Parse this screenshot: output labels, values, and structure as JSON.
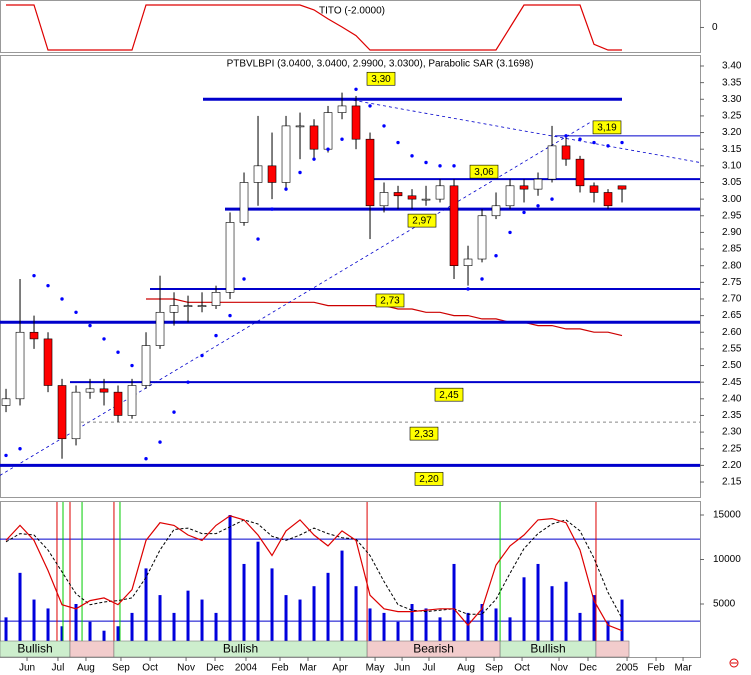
{
  "chart_data": [
    {
      "type": "line",
      "title": "TITO (-2.0000)",
      "color": "#dd0000",
      "values": [
        2,
        2,
        2,
        -2,
        -2,
        -2,
        -2,
        -2,
        -2,
        -2,
        2,
        2,
        2,
        2,
        2,
        2,
        2,
        2,
        2,
        2,
        2,
        2,
        1.56,
        0.76,
        0.04,
        -0.72,
        -2,
        -2,
        -2,
        -2,
        -2,
        -2,
        -2,
        -2,
        -2,
        -2,
        0,
        2,
        2,
        2,
        2,
        2,
        -1.5,
        -2,
        -2
      ],
      "ylim": [
        -2.18,
        2.44
      ],
      "yticks": [
        0
      ]
    },
    {
      "type": "candlestick",
      "title": "PTBVLBPI (3.0400, 3.0400, 2.9900, 3.0300), Parabolic SAR (3.1698)",
      "up_color": "#ffffff",
      "down_color": "#ff0000",
      "sar_color": "#0000ff",
      "ma_color": "#cc0000",
      "level_color": "#0000cc",
      "trend_color": "#0000cc",
      "ohlc": [
        [
          2.38,
          2.43,
          2.36,
          2.4
        ],
        [
          2.4,
          2.76,
          2.38,
          2.6
        ],
        [
          2.6,
          2.65,
          2.55,
          2.58
        ],
        [
          2.58,
          2.6,
          2.42,
          2.44
        ],
        [
          2.44,
          2.46,
          2.22,
          2.28
        ],
        [
          2.28,
          2.44,
          2.26,
          2.42
        ],
        [
          2.42,
          2.46,
          2.4,
          2.43
        ],
        [
          2.43,
          2.46,
          2.38,
          2.42
        ],
        [
          2.42,
          2.44,
          2.33,
          2.35
        ],
        [
          2.35,
          2.46,
          2.34,
          2.44
        ],
        [
          2.44,
          2.6,
          2.43,
          2.56
        ],
        [
          2.56,
          2.77,
          2.55,
          2.66
        ],
        [
          2.66,
          2.72,
          2.62,
          2.68
        ],
        [
          2.68,
          2.71,
          2.63,
          2.68
        ],
        [
          2.68,
          2.72,
          2.66,
          2.68
        ],
        [
          2.68,
          2.74,
          2.67,
          2.72
        ],
        [
          2.72,
          2.96,
          2.7,
          2.93
        ],
        [
          2.93,
          3.08,
          2.92,
          3.05
        ],
        [
          3.05,
          3.25,
          2.98,
          3.1
        ],
        [
          3.1,
          3.2,
          3.0,
          3.05
        ],
        [
          3.05,
          3.25,
          3.03,
          3.22
        ],
        [
          3.22,
          3.26,
          3.12,
          3.22
        ],
        [
          3.22,
          3.24,
          3.12,
          3.15
        ],
        [
          3.15,
          3.28,
          3.14,
          3.26
        ],
        [
          3.26,
          3.32,
          3.24,
          3.28
        ],
        [
          3.28,
          3.31,
          3.15,
          3.18
        ],
        [
          3.18,
          3.2,
          2.88,
          2.98
        ],
        [
          2.98,
          3.05,
          2.96,
          3.02
        ],
        [
          3.02,
          3.04,
          2.97,
          3.01
        ],
        [
          3.01,
          3.03,
          2.97,
          3.0
        ],
        [
          3.0,
          3.04,
          2.98,
          3.0
        ],
        [
          3.0,
          3.06,
          2.99,
          3.04
        ],
        [
          3.04,
          3.06,
          2.76,
          2.8
        ],
        [
          2.8,
          2.86,
          2.74,
          2.82
        ],
        [
          2.82,
          2.97,
          2.81,
          2.95
        ],
        [
          2.95,
          3.02,
          2.94,
          2.98
        ],
        [
          2.98,
          3.06,
          2.97,
          3.04
        ],
        [
          3.04,
          3.06,
          2.99,
          3.03
        ],
        [
          3.03,
          3.08,
          3.01,
          3.06
        ],
        [
          3.06,
          3.22,
          3.05,
          3.16
        ],
        [
          3.16,
          3.19,
          3.1,
          3.12
        ],
        [
          3.12,
          3.13,
          3.02,
          3.04
        ],
        [
          3.04,
          3.05,
          2.99,
          3.02
        ],
        [
          3.02,
          3.03,
          2.97,
          2.98
        ],
        [
          3.04,
          3.04,
          2.99,
          3.03
        ]
      ],
      "sar_values": [
        2.23,
        2.25,
        2.77,
        2.74,
        2.7,
        2.66,
        2.62,
        2.58,
        2.54,
        2.5,
        2.22,
        2.27,
        2.36,
        2.45,
        2.53,
        2.59,
        2.65,
        2.76,
        2.88,
        2.97,
        3.03,
        3.08,
        3.12,
        3.15,
        3.18,
        3.33,
        3.28,
        3.22,
        3.17,
        3.13,
        3.11,
        3.1,
        3.1,
        2.73,
        2.76,
        2.83,
        2.9,
        2.96,
        2.98,
        3.0,
        3.19,
        3.18,
        3.17,
        3.16,
        3.17
      ],
      "ma_values": [
        null,
        null,
        null,
        null,
        null,
        null,
        null,
        null,
        null,
        null,
        2.7,
        2.7,
        2.7,
        2.69,
        2.69,
        2.69,
        2.69,
        2.69,
        2.69,
        2.69,
        2.69,
        2.69,
        2.69,
        2.68,
        2.68,
        2.68,
        2.68,
        2.68,
        2.67,
        2.67,
        2.66,
        2.66,
        2.65,
        2.65,
        2.64,
        2.64,
        2.63,
        2.63,
        2.62,
        2.62,
        2.61,
        2.61,
        2.6,
        2.6,
        2.59
      ],
      "levels": [
        {
          "value": 3.3,
          "label": "3,30"
        },
        {
          "value": 3.19,
          "label": "3,19"
        },
        {
          "value": 3.06,
          "label": "3,06"
        },
        {
          "value": 2.97,
          "label": "2,97"
        },
        {
          "value": 2.73,
          "label": "2,73"
        },
        {
          "value": 2.63
        },
        {
          "value": 2.45,
          "label": "2,45"
        },
        {
          "value": 2.33,
          "label": "2,33",
          "color": "#888888"
        },
        {
          "value": 2.2,
          "label": "2,20"
        }
      ],
      "trendlines": [
        {
          "x": [
            -0.43,
            41.7
          ],
          "y": [
            2.17,
            3.23
          ]
        },
        {
          "x": [
            24.4,
            49.57
          ],
          "y": [
            3.3,
            3.11
          ]
        }
      ],
      "ylim": [
        2.105,
        3.43
      ],
      "yticks": [
        {
          "value": 3.4,
          "label": "3.40"
        },
        3.35,
        {
          "value": 3.3,
          "label": "3.30"
        },
        3.25,
        {
          "value": 3.2,
          "label": "3.20"
        },
        3.15,
        {
          "value": 3.1,
          "label": "3.10"
        },
        3.05,
        {
          "value": 3.0,
          "label": "3.00"
        },
        2.95,
        {
          "value": 2.9,
          "label": "2.90"
        },
        2.85,
        {
          "value": 2.8,
          "label": "2.80"
        },
        2.75,
        {
          "value": 2.7,
          "label": "2.70"
        },
        2.65,
        {
          "value": 2.6,
          "label": "2.60"
        },
        2.55,
        {
          "value": 2.5,
          "label": "2.50"
        },
        2.45,
        {
          "value": 2.4,
          "label": "2.40"
        },
        2.35,
        {
          "value": 2.3,
          "label": "2.30"
        },
        2.25,
        {
          "value": 2.2,
          "label": "2.20"
        },
        2.15
      ]
    },
    {
      "type": "volume-oscillator",
      "volume_color": "#0000dd",
      "k_color": "#dd0000",
      "d_color": "#000000",
      "stoch_color": "#0000cc",
      "volume_values": [
        3500,
        8500,
        5500,
        4500,
        2500,
        5000,
        3000,
        2000,
        2500,
        4000,
        9000,
        6000,
        4000,
        6500,
        5500,
        4000,
        15000,
        9500,
        12000,
        9000,
        6000,
        5500,
        7000,
        8500,
        11000,
        7000,
        4500,
        4000,
        3000,
        5000,
        4500,
        3500,
        9500,
        4000,
        5000,
        4500,
        3500,
        8000,
        9500,
        7000,
        7500,
        4000,
        6000,
        3000,
        5500
      ],
      "k_values": [
        79,
        90,
        79,
        57,
        32,
        29,
        35,
        37,
        32,
        43,
        79,
        92,
        90,
        83,
        79,
        90,
        97,
        94,
        83,
        68,
        86,
        94,
        83,
        75,
        86,
        79,
        39,
        29,
        27,
        27,
        28,
        29,
        29,
        17,
        29,
        61,
        75,
        83,
        94,
        95,
        92,
        72,
        35,
        17,
        13
      ],
      "d_values": [
        78,
        84,
        83,
        72,
        56,
        40,
        32,
        34,
        35,
        37,
        52,
        72,
        87,
        88,
        84,
        84,
        89,
        94,
        91,
        82,
        79,
        83,
        88,
        84,
        81,
        80,
        68,
        49,
        32,
        28,
        27,
        28,
        29,
        25,
        25,
        36,
        55,
        73,
        84,
        91,
        94,
        86,
        66,
        41,
        22
      ],
      "ylim": [
        0,
        16460
      ],
      "yticks": [
        5000,
        10000,
        15000
      ],
      "y2lim": [
        0,
        107.1
      ],
      "stoch_levels": [
        80,
        20
      ],
      "sell_signals": [
        3.64,
        4.57,
        7.71,
        25.79,
        42.14
      ],
      "sell_color": "#dd0000",
      "buy_signals": [
        4.07,
        5.43,
        8.14,
        35.29
      ],
      "buy_color": "#00cc00",
      "bands": [
        {
          "from": -0.43,
          "to": 4.57,
          "label": "Bullish",
          "color": "#cdeecd"
        },
        {
          "from": 4.57,
          "to": 7.71,
          "color": "#f2cccc"
        },
        {
          "from": 7.71,
          "to": 25.79,
          "label": "Bullish",
          "color": "#cdeecd"
        },
        {
          "from": 25.79,
          "to": 35.29,
          "label": "Bearish",
          "color": "#f2cccc"
        },
        {
          "from": 35.29,
          "to": 42.14,
          "label": "Bullish",
          "color": "#cdeecd"
        },
        {
          "from": 42.14,
          "to": 44.5,
          "color": "#f2cccc"
        }
      ],
      "xlim": [
        -0.43,
        49.57
      ],
      "xticks": [
        {
          "value": 1.5,
          "label": "Jun"
        },
        {
          "value": 3.71,
          "label": "Jul"
        },
        {
          "value": 5.71,
          "label": "Aug"
        },
        {
          "value": 8.21,
          "label": "Sep"
        },
        {
          "value": 10.29,
          "label": "Oct"
        },
        {
          "value": 12.86,
          "label": "Nov"
        },
        {
          "value": 14.93,
          "label": "Dec"
        },
        {
          "value": 17.14,
          "label": "2004"
        },
        {
          "value": 19.57,
          "label": "Feb"
        },
        {
          "value": 21.57,
          "label": "Mar"
        },
        {
          "value": 23.86,
          "label": "Apr"
        },
        {
          "value": 26.36,
          "label": "May"
        },
        {
          "value": 28.29,
          "label": "Jun"
        },
        {
          "value": 30.21,
          "label": "Jul"
        },
        {
          "value": 32.86,
          "label": "Aug"
        },
        {
          "value": 34.86,
          "label": "Sep"
        },
        {
          "value": 36.86,
          "label": "Oct"
        },
        {
          "value": 39.5,
          "label": "Nov"
        },
        {
          "value": 41.57,
          "label": "Dec"
        },
        {
          "value": 44.36,
          "label": "2005"
        },
        {
          "value": 46.43,
          "label": "Feb"
        },
        {
          "value": 48.36,
          "label": "Mar"
        }
      ]
    }
  ]
}
